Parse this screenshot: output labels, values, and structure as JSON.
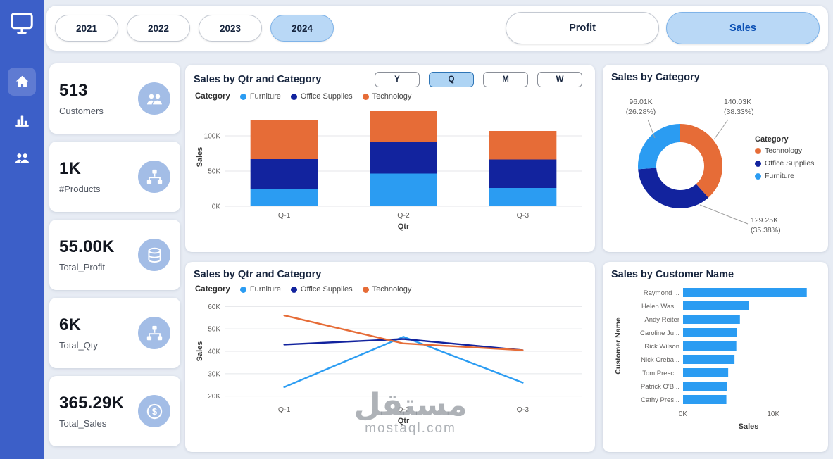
{
  "colors": {
    "sidebar": "#3c5fc8",
    "page_bg": "#e7ecf4",
    "selected_pill": "#b9d8f6",
    "furniture": "#2b9cf2",
    "office_supplies": "#12239e",
    "technology": "#e66c37",
    "kpi_icon_bg": "#a3bde6",
    "customer_bar": "#2b9cf2"
  },
  "sidebar": {
    "items": [
      {
        "name": "monitor-icon"
      },
      {
        "name": "home-icon"
      },
      {
        "name": "bar-chart-icon"
      },
      {
        "name": "users-icon"
      }
    ]
  },
  "filters": {
    "years": [
      {
        "label": "2021",
        "selected": false
      },
      {
        "label": "2022",
        "selected": false
      },
      {
        "label": "2023",
        "selected": false
      },
      {
        "label": "2024",
        "selected": true
      }
    ],
    "measures": [
      {
        "label": "Profit",
        "selected": false
      },
      {
        "label": "Sales",
        "selected": true
      }
    ]
  },
  "kpis": [
    {
      "value": "513",
      "label": "Customers",
      "icon": "customers-icon"
    },
    {
      "value": "1K",
      "label": "#Products",
      "icon": "products-icon"
    },
    {
      "value": "55.00K",
      "label": "Total_Profit",
      "icon": "profit-icon"
    },
    {
      "value": "6K",
      "label": "Total_Qty",
      "icon": "quantity-icon"
    },
    {
      "value": "365.29K",
      "label": "Total_Sales",
      "icon": "sales-icon"
    }
  ],
  "chart_data": [
    {
      "type": "bar",
      "variant": "stacked-column",
      "title": "Sales by Qtr and Category",
      "xlabel": "Qtr",
      "ylabel": "Sales",
      "legend_title": "Category",
      "unit": "K",
      "categories": [
        "Q-1",
        "Q-2",
        "Q-3"
      ],
      "series": [
        {
          "name": "Furniture",
          "color": "#2b9cf2",
          "values": [
            24,
            46.5,
            26
          ]
        },
        {
          "name": "Office Supplies",
          "color": "#12239e",
          "values": [
            43,
            45.5,
            40.5
          ]
        },
        {
          "name": "Technology",
          "color": "#e66c37",
          "values": [
            56,
            43.5,
            40.5
          ]
        }
      ],
      "yticks": [
        0,
        50,
        100
      ],
      "ytick_labels": [
        "0K",
        "50K",
        "100K"
      ],
      "ylim": [
        0,
        140
      ],
      "grid": true,
      "period_buttons": [
        {
          "label": "Y",
          "selected": false
        },
        {
          "label": "Q",
          "selected": true
        },
        {
          "label": "M",
          "selected": false
        },
        {
          "label": "W",
          "selected": false
        }
      ]
    },
    {
      "type": "line",
      "title": "Sales by Qtr and Category",
      "xlabel": "Qtr",
      "ylabel": "Sales",
      "legend_title": "Category",
      "unit": "K",
      "categories": [
        "Q-1",
        "Q-2",
        "Q-3"
      ],
      "series": [
        {
          "name": "Furniture",
          "color": "#2b9cf2",
          "values": [
            24,
            46.5,
            26
          ]
        },
        {
          "name": "Office Supplies",
          "color": "#12239e",
          "values": [
            43,
            45.5,
            40.5
          ]
        },
        {
          "name": "Technology",
          "color": "#e66c37",
          "values": [
            56,
            43.5,
            40.5
          ]
        }
      ],
      "yticks": [
        20,
        30,
        40,
        50,
        60
      ],
      "ytick_labels": [
        "20K",
        "30K",
        "40K",
        "50K",
        "60K"
      ],
      "ylim": [
        18,
        62
      ],
      "grid": true
    },
    {
      "type": "pie",
      "variant": "donut",
      "title": "Sales by Category",
      "legend_title": "Category",
      "slices": [
        {
          "name": "Technology",
          "color": "#e66c37",
          "value_label": "140.03K",
          "pct_label": "(38.33%)",
          "pct": 38.33,
          "callout": "top-right"
        },
        {
          "name": "Office Supplies",
          "color": "#12239e",
          "value_label": "129.25K",
          "pct_label": "(35.38%)",
          "pct": 35.38,
          "callout": "bottom-right"
        },
        {
          "name": "Furniture",
          "color": "#2b9cf2",
          "value_label": "96.01K",
          "pct_label": "(26.28%)",
          "pct": 26.28,
          "callout": "top-left"
        }
      ],
      "legend_position": "right"
    },
    {
      "type": "bar",
      "variant": "horizontal",
      "title": "Sales by Customer Name",
      "xlabel": "Sales",
      "ylabel": "Customer Name",
      "unit": "K",
      "bar_color": "#2b9cf2",
      "categories": [
        "Raymond ...",
        "Helen Was...",
        "Andy Reiter",
        "Caroline Ju...",
        "Rick Wilson",
        "Nick Creba...",
        "Tom Presc...",
        "Patrick O'B...",
        "Cathy Pres..."
      ],
      "values": [
        13.7,
        7.3,
        6.3,
        6.0,
        5.9,
        5.7,
        5.0,
        4.9,
        4.8
      ],
      "xticks": [
        0,
        10
      ],
      "xtick_labels": [
        "0K",
        "10K"
      ],
      "xlim": [
        0,
        14.5
      ]
    }
  ],
  "watermark": {
    "line1": "مستقل",
    "line2": "mostaql.com"
  }
}
